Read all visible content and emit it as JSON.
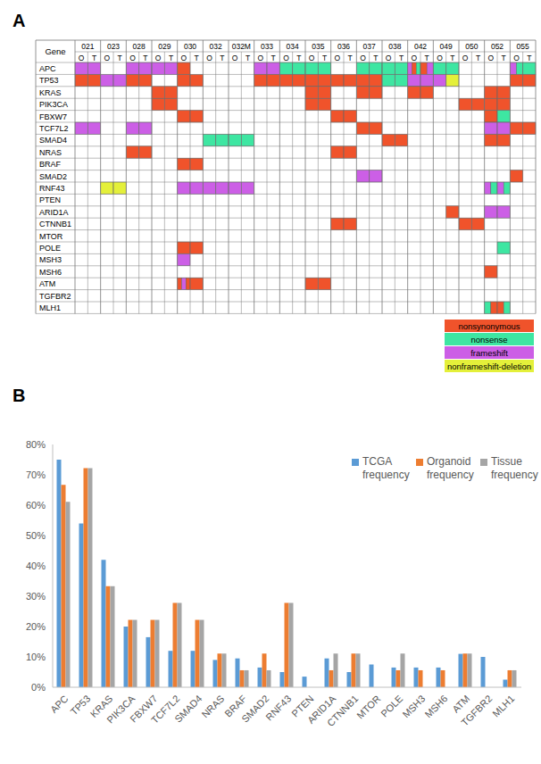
{
  "panel_labels": [
    "A",
    "B"
  ],
  "mutation_matrix": {
    "header": "Gene",
    "samples": [
      "021",
      "023",
      "028",
      "029",
      "030",
      "032",
      "032M",
      "033",
      "034",
      "035",
      "036",
      "037",
      "038",
      "042",
      "049",
      "050",
      "052",
      "055"
    ],
    "subcolumns": [
      "O",
      "T"
    ],
    "mutation_types": [
      {
        "name": "nonsynonymous",
        "color": "#f0532b"
      },
      {
        "name": "nonsense",
        "color": "#3ee6a2"
      },
      {
        "name": "frameshift",
        "color": "#cc5fe6"
      },
      {
        "name": "nonframeshift-deletion",
        "color": "#e4f03a"
      }
    ],
    "rows": [
      {
        "gene": "APC",
        "cells": [
          [
            2
          ],
          [
            2
          ],
          null,
          null,
          [
            2
          ],
          [
            2
          ],
          [
            2
          ],
          [
            2
          ],
          [
            0
          ],
          null,
          null,
          null,
          null,
          null,
          [
            2
          ],
          [
            2
          ],
          [
            1
          ],
          [
            1
          ],
          [
            1
          ],
          [
            1
          ],
          null,
          null,
          [
            1
          ],
          [
            1
          ],
          [
            1
          ],
          [
            1
          ],
          [
            2,
            0,
            1
          ],
          [
            0,
            2
          ],
          [
            1
          ],
          [
            1
          ],
          null,
          null,
          null,
          null,
          [
            2,
            1
          ],
          [
            1
          ]
        ]
      },
      {
        "gene": "TP53",
        "cells": [
          [
            0
          ],
          [
            0
          ],
          [
            2
          ],
          [
            2
          ],
          [
            0
          ],
          [
            0
          ],
          null,
          null,
          [
            0
          ],
          [
            0
          ],
          null,
          null,
          null,
          null,
          [
            0
          ],
          [
            0
          ],
          [
            0
          ],
          [
            0
          ],
          [
            0
          ],
          [
            0
          ],
          [
            0
          ],
          [
            0
          ],
          [
            0
          ],
          [
            0
          ],
          [
            1
          ],
          [
            1
          ],
          [
            2
          ],
          [
            2
          ],
          [
            2
          ],
          [
            3
          ],
          null,
          null,
          null,
          null,
          [
            0
          ],
          [
            0
          ]
        ]
      },
      {
        "gene": "KRAS",
        "cells": [
          null,
          null,
          null,
          null,
          null,
          null,
          [
            0
          ],
          [
            0
          ],
          null,
          null,
          null,
          null,
          null,
          null,
          null,
          null,
          null,
          null,
          [
            0
          ],
          [
            0
          ],
          null,
          null,
          [
            0
          ],
          [
            0
          ],
          null,
          null,
          [
            0
          ],
          [
            0
          ],
          null,
          null,
          null,
          null,
          [
            0
          ],
          [
            0
          ],
          null,
          null
        ]
      },
      {
        "gene": "PIK3CA",
        "cells": [
          null,
          null,
          null,
          null,
          null,
          null,
          [
            0
          ],
          [
            0
          ],
          null,
          null,
          null,
          null,
          null,
          null,
          null,
          null,
          null,
          null,
          [
            0
          ],
          [
            0
          ],
          null,
          null,
          null,
          null,
          null,
          null,
          null,
          null,
          null,
          null,
          [
            0
          ],
          [
            0
          ],
          [
            0
          ],
          [
            0
          ],
          null,
          null
        ]
      },
      {
        "gene": "FBXW7",
        "cells": [
          null,
          null,
          null,
          null,
          null,
          null,
          null,
          null,
          [
            0
          ],
          [
            0
          ],
          null,
          null,
          null,
          null,
          null,
          null,
          null,
          null,
          null,
          null,
          [
            0
          ],
          [
            0
          ],
          null,
          null,
          null,
          null,
          null,
          null,
          null,
          null,
          null,
          null,
          [
            0
          ],
          [
            1
          ],
          null,
          null
        ]
      },
      {
        "gene": "TCF7L2",
        "cells": [
          [
            2
          ],
          [
            2
          ],
          null,
          null,
          [
            2
          ],
          [
            2
          ],
          null,
          null,
          null,
          null,
          null,
          null,
          null,
          null,
          null,
          null,
          null,
          null,
          null,
          null,
          null,
          null,
          [
            0
          ],
          [
            0
          ],
          null,
          null,
          null,
          null,
          null,
          null,
          null,
          null,
          [
            2
          ],
          [
            2
          ],
          [
            0
          ],
          [
            0
          ]
        ]
      },
      {
        "gene": "SMAD4",
        "cells": [
          null,
          null,
          null,
          null,
          null,
          null,
          null,
          null,
          null,
          null,
          [
            1
          ],
          [
            1
          ],
          [
            1
          ],
          [
            1
          ],
          null,
          null,
          null,
          null,
          null,
          null,
          null,
          null,
          null,
          null,
          [
            0
          ],
          [
            0
          ],
          null,
          null,
          null,
          null,
          null,
          null,
          [
            0
          ],
          [
            0
          ],
          null,
          null
        ]
      },
      {
        "gene": "NRAS",
        "cells": [
          null,
          null,
          null,
          null,
          [
            0
          ],
          [
            0
          ],
          null,
          null,
          null,
          null,
          null,
          null,
          null,
          null,
          null,
          null,
          null,
          null,
          null,
          null,
          [
            0
          ],
          [
            0
          ],
          null,
          null,
          null,
          null,
          null,
          null,
          null,
          null,
          null,
          null,
          null,
          null,
          null,
          null
        ]
      },
      {
        "gene": "BRAF",
        "cells": [
          null,
          null,
          null,
          null,
          null,
          null,
          null,
          null,
          [
            0
          ],
          [
            0
          ],
          null,
          null,
          null,
          null,
          null,
          null,
          null,
          null,
          null,
          null,
          null,
          null,
          null,
          null,
          null,
          null,
          null,
          null,
          null,
          null,
          null,
          null,
          null,
          null,
          null,
          null
        ]
      },
      {
        "gene": "SMAD2",
        "cells": [
          null,
          null,
          null,
          null,
          null,
          null,
          null,
          null,
          null,
          null,
          null,
          null,
          null,
          null,
          null,
          null,
          null,
          null,
          null,
          null,
          null,
          null,
          [
            2
          ],
          [
            2
          ],
          null,
          null,
          null,
          null,
          null,
          null,
          null,
          null,
          null,
          null,
          [
            0
          ],
          null
        ]
      },
      {
        "gene": "RNF43",
        "cells": [
          null,
          null,
          [
            3
          ],
          [
            3
          ],
          null,
          null,
          null,
          null,
          [
            2
          ],
          [
            2
          ],
          [
            2
          ],
          [
            2
          ],
          [
            2
          ],
          [
            2
          ],
          null,
          null,
          null,
          null,
          null,
          null,
          null,
          null,
          null,
          null,
          null,
          null,
          null,
          null,
          null,
          null,
          null,
          null,
          [
            2,
            1
          ],
          [
            2,
            1
          ],
          null,
          null
        ]
      },
      {
        "gene": "PTEN",
        "cells": [
          null,
          null,
          null,
          null,
          null,
          null,
          null,
          null,
          null,
          null,
          null,
          null,
          null,
          null,
          null,
          null,
          null,
          null,
          null,
          null,
          null,
          null,
          null,
          null,
          null,
          null,
          null,
          null,
          null,
          null,
          null,
          null,
          null,
          null,
          null,
          null
        ]
      },
      {
        "gene": "ARID1A",
        "cells": [
          null,
          null,
          null,
          null,
          null,
          null,
          null,
          null,
          null,
          null,
          null,
          null,
          null,
          null,
          null,
          null,
          null,
          null,
          null,
          null,
          null,
          null,
          null,
          null,
          null,
          null,
          null,
          null,
          null,
          [
            0
          ],
          null,
          null,
          [
            2
          ],
          [
            2
          ],
          null,
          null
        ]
      },
      {
        "gene": "CTNNB1",
        "cells": [
          null,
          null,
          null,
          null,
          null,
          null,
          null,
          null,
          null,
          null,
          null,
          null,
          null,
          null,
          null,
          null,
          null,
          null,
          null,
          null,
          [
            0
          ],
          [
            0
          ],
          null,
          null,
          null,
          null,
          null,
          null,
          null,
          null,
          [
            0
          ],
          [
            0
          ],
          null,
          null,
          null,
          null
        ]
      },
      {
        "gene": "MTOR",
        "cells": [
          null,
          null,
          null,
          null,
          null,
          null,
          null,
          null,
          null,
          null,
          null,
          null,
          null,
          null,
          null,
          null,
          null,
          null,
          null,
          null,
          null,
          null,
          null,
          null,
          null,
          null,
          null,
          null,
          null,
          null,
          null,
          null,
          null,
          null,
          null,
          null
        ]
      },
      {
        "gene": "POLE",
        "cells": [
          null,
          null,
          null,
          null,
          null,
          null,
          null,
          null,
          [
            0
          ],
          [
            0
          ],
          null,
          null,
          null,
          null,
          null,
          null,
          null,
          null,
          null,
          null,
          null,
          null,
          null,
          null,
          null,
          null,
          null,
          null,
          null,
          null,
          null,
          null,
          null,
          [
            1
          ],
          null,
          null
        ]
      },
      {
        "gene": "MSH3",
        "cells": [
          null,
          null,
          null,
          null,
          null,
          null,
          null,
          null,
          [
            2
          ],
          null,
          null,
          null,
          null,
          null,
          null,
          null,
          null,
          null,
          null,
          null,
          null,
          null,
          null,
          null,
          null,
          null,
          null,
          null,
          null,
          null,
          null,
          null,
          null,
          null,
          null,
          null
        ]
      },
      {
        "gene": "MSH6",
        "cells": [
          null,
          null,
          null,
          null,
          null,
          null,
          null,
          null,
          null,
          null,
          null,
          null,
          null,
          null,
          null,
          null,
          null,
          null,
          null,
          null,
          null,
          null,
          null,
          null,
          null,
          null,
          null,
          null,
          null,
          null,
          null,
          null,
          [
            0
          ],
          null,
          null,
          null
        ]
      },
      {
        "gene": "ATM",
        "cells": [
          null,
          null,
          null,
          null,
          null,
          null,
          null,
          null,
          [
            0,
            2,
            0
          ],
          [
            0
          ],
          null,
          null,
          null,
          null,
          null,
          null,
          null,
          null,
          [
            0
          ],
          [
            0
          ],
          null,
          null,
          null,
          null,
          null,
          null,
          null,
          null,
          null,
          null,
          null,
          null,
          null,
          null,
          null,
          null
        ]
      },
      {
        "gene": "TGFBR2",
        "cells": [
          null,
          null,
          null,
          null,
          null,
          null,
          null,
          null,
          null,
          null,
          null,
          null,
          null,
          null,
          null,
          null,
          null,
          null,
          null,
          null,
          null,
          null,
          null,
          null,
          null,
          null,
          null,
          null,
          null,
          null,
          null,
          null,
          null,
          null,
          null,
          null
        ]
      },
      {
        "gene": "MLH1",
        "cells": [
          null,
          null,
          null,
          null,
          null,
          null,
          null,
          null,
          null,
          null,
          null,
          null,
          null,
          null,
          null,
          null,
          null,
          null,
          null,
          null,
          null,
          null,
          null,
          null,
          null,
          null,
          null,
          null,
          null,
          null,
          null,
          null,
          [
            1,
            0
          ],
          [
            0,
            1
          ],
          null,
          null
        ]
      }
    ]
  },
  "chart_data": {
    "type": "bar",
    "categories": [
      "APC",
      "TP53",
      "KRAS",
      "PIK3CA",
      "FBXW7",
      "TCF7L2",
      "SMAD4",
      "NRAS",
      "BRAF",
      "SMAD2",
      "RNF43",
      "PTEN",
      "ARID1A",
      "CTNNB1",
      "MTOR",
      "POLE",
      "MSH3",
      "MSH6",
      "ATM",
      "TGFBR2",
      "MLH1"
    ],
    "series": [
      {
        "name": "TCGA frequency",
        "color": "#5b9bd5",
        "values": [
          75,
          54,
          42,
          20,
          16.5,
          12,
          12,
          9,
          9.5,
          6.5,
          5,
          3.5,
          9.5,
          5,
          7.5,
          6.5,
          6.5,
          6.5,
          11,
          10,
          2.5
        ]
      },
      {
        "name": "Organoid frequency",
        "color": "#ed7d31",
        "values": [
          66.7,
          72.2,
          33.3,
          22.2,
          22.2,
          27.8,
          22.2,
          11.1,
          5.6,
          11.1,
          27.8,
          0,
          5.6,
          11.1,
          0,
          5.6,
          5.6,
          5.6,
          11.1,
          0,
          5.6
        ]
      },
      {
        "name": "Tissue frequency",
        "color": "#a5a5a5",
        "values": [
          61.1,
          72.2,
          33.3,
          22.2,
          22.2,
          27.8,
          22.2,
          11.1,
          5.6,
          5.6,
          27.8,
          0,
          11.1,
          11.1,
          0,
          11.1,
          0,
          0,
          11.1,
          0,
          5.6
        ]
      }
    ],
    "ylim": [
      0,
      80
    ],
    "yticks": [
      {
        "value": 0,
        "label": "0%"
      },
      {
        "value": 10,
        "label": "10%"
      },
      {
        "value": 20,
        "label": "20%"
      },
      {
        "value": 30,
        "label": "30%"
      },
      {
        "value": 40,
        "label": "40%"
      },
      {
        "value": 50,
        "label": "50%"
      },
      {
        "value": 60,
        "label": "60%"
      },
      {
        "value": 70,
        "label": "70%"
      },
      {
        "value": 80,
        "label": "80%"
      }
    ],
    "grid": false,
    "legend": "top-right"
  }
}
